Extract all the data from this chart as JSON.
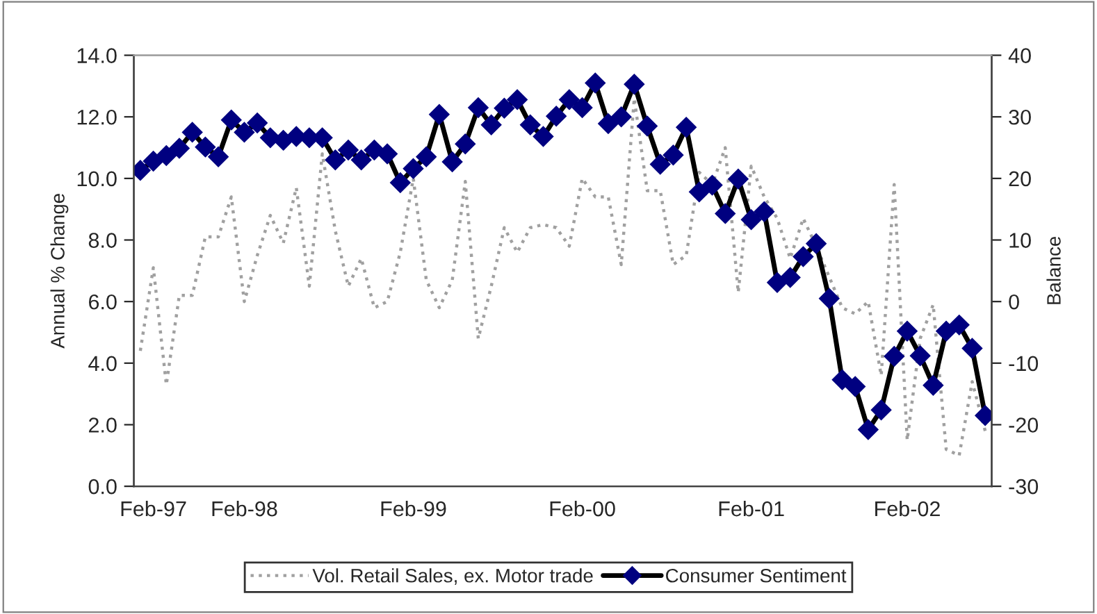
{
  "chart_data": {
    "type": "line",
    "ylabel": "Annual % Change",
    "y2label": "Balance",
    "categories": [
      null,
      "Feb-97",
      null,
      null,
      null,
      null,
      null,
      null,
      "Feb-98",
      null,
      null,
      null,
      null,
      null,
      null,
      null,
      null,
      null,
      null,
      null,
      null,
      "Feb-99",
      null,
      null,
      null,
      null,
      null,
      null,
      null,
      null,
      null,
      null,
      null,
      null,
      "Feb-00",
      null,
      null,
      null,
      null,
      null,
      null,
      null,
      null,
      null,
      null,
      null,
      null,
      "Feb-01",
      null,
      null,
      null,
      null,
      null,
      null,
      null,
      null,
      null,
      null,
      null,
      "Feb-02",
      null,
      null,
      null,
      null,
      null,
      null
    ],
    "ylim": [
      0,
      14
    ],
    "yticks": [
      {
        "value": 0,
        "label": "0.0"
      },
      {
        "value": 2,
        "label": "2.0"
      },
      {
        "value": 4,
        "label": "4.0"
      },
      {
        "value": 6,
        "label": "6.0"
      },
      {
        "value": 8,
        "label": "8.0"
      },
      {
        "value": 10,
        "label": "10.0"
      },
      {
        "value": 12,
        "label": "12.0"
      },
      {
        "value": 14,
        "label": "14.0"
      }
    ],
    "y2lim": [
      -30,
      40
    ],
    "y2ticks": [
      -30,
      -20,
      -10,
      0,
      10,
      20,
      30,
      40
    ],
    "grid": false,
    "legend": "bottom",
    "series": [
      {
        "name": "Vol. Retail Sales, ex. Motor trade",
        "color": "#a0a0a0",
        "line_style": "dotted",
        "marker": "none",
        "values": [
          4.4,
          7.1,
          3.3,
          6.2,
          6.2,
          8.1,
          8.1,
          9.4,
          6.0,
          7.5,
          8.8,
          7.9,
          9.7,
          6.5,
          10.8,
          8.3,
          6.5,
          7.4,
          5.8,
          6.0,
          7.6,
          10.0,
          6.7,
          5.8,
          6.7,
          9.9,
          4.8,
          6.5,
          8.4,
          7.6,
          8.4,
          8.5,
          8.4,
          7.8,
          10.0,
          9.4,
          9.4,
          7.2,
          12.6,
          9.6,
          9.6,
          7.2,
          7.5,
          10.2,
          9.8,
          11.0,
          6.3,
          10.4,
          9.4,
          8.7,
          7.4,
          8.7,
          7.8,
          6.8,
          5.8,
          5.6,
          6.0,
          3.6,
          9.8,
          1.5,
          4.8,
          5.9,
          1.2,
          1.0,
          3.4,
          1.8
        ]
      },
      {
        "name": "Consumer Sentiment",
        "color": "#000080",
        "line_style": "solid",
        "marker": "diamond",
        "axis": "y2",
        "values": [
          21.3,
          22.8,
          23.7,
          24.9,
          27.5,
          25.1,
          23.5,
          29.5,
          27.5,
          29.0,
          26.6,
          26.2,
          26.8,
          26.6,
          26.6,
          23.0,
          24.6,
          23.0,
          24.6,
          24.0,
          19.3,
          21.6,
          23.5,
          30.4,
          22.7,
          25.6,
          31.5,
          28.7,
          31.4,
          32.8,
          28.7,
          26.8,
          30.1,
          32.8,
          31.5,
          35.5,
          28.9,
          30.0,
          35.3,
          28.5,
          22.3,
          23.8,
          28.3,
          17.8,
          18.9,
          14.3,
          19.9,
          13.3,
          14.6,
          3.1,
          3.9,
          7.3,
          9.4,
          0.5,
          -12.7,
          -13.8,
          -20.8,
          -17.6,
          -8.9,
          -4.8,
          -8.8,
          -13.6,
          -4.8,
          -3.8,
          -7.6,
          -18.5
        ]
      }
    ]
  }
}
